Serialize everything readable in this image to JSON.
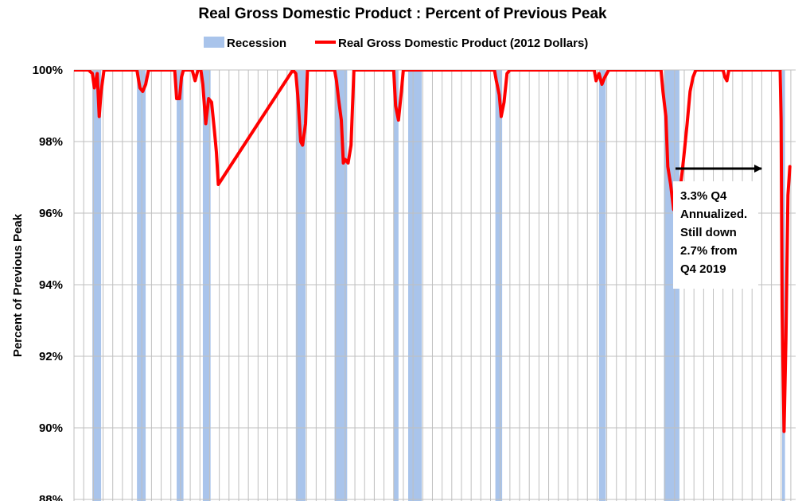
{
  "chart_data": {
    "type": "line",
    "title": "Real Gross Domestic Product : Percent of Previous Peak",
    "ylabel": "Percent of Previous Peak",
    "xlabel": "",
    "ylim": [
      88,
      100
    ],
    "xlim": [
      1947.0,
      2021.5
    ],
    "y_ticks": [
      {
        "value": 100,
        "label": "100%"
      },
      {
        "value": 98,
        "label": "98%"
      },
      {
        "value": 96,
        "label": "96%"
      },
      {
        "value": 94,
        "label": "94%"
      },
      {
        "value": 92,
        "label": "92%"
      },
      {
        "value": 90,
        "label": "90%"
      },
      {
        "value": 88,
        "label": "88%"
      }
    ],
    "legend": {
      "placement": "top"
    },
    "colors": {
      "recession": "#a9c4eb",
      "gdp": "#ff0000",
      "grid": "#bfbfbf"
    },
    "recessions": {
      "name": "Recession",
      "periods": [
        [
          1948.9,
          1949.8
        ],
        [
          1953.5,
          1954.4
        ],
        [
          1957.6,
          1958.3
        ],
        [
          1960.3,
          1961.1
        ],
        [
          1969.9,
          1970.9
        ],
        [
          1973.9,
          1975.2
        ],
        [
          1980.0,
          1980.5
        ],
        [
          1981.5,
          1982.9
        ],
        [
          1990.5,
          1991.2
        ],
        [
          2001.2,
          2001.9
        ],
        [
          2007.9,
          2009.5
        ],
        [
          2020.1,
          2020.4
        ]
      ]
    },
    "series": [
      {
        "name": "Real Gross Domestic Product (2012 Dollars)",
        "x": [
          1947.0,
          1948.5,
          1948.9,
          1949.1,
          1949.4,
          1949.6,
          1949.8,
          1950.1,
          1950.3,
          1953.5,
          1953.8,
          1954.1,
          1954.4,
          1954.7,
          1954.9,
          1955.1,
          1957.4,
          1957.6,
          1957.9,
          1958.1,
          1958.3,
          1958.5,
          1958.8,
          1959.2,
          1959.5,
          1959.8,
          1960.1,
          1960.3,
          1960.6,
          1960.9,
          1961.2,
          1961.5,
          1961.7,
          1961.9,
          1969.6,
          1969.9,
          1970.1,
          1970.4,
          1970.6,
          1970.9,
          1971.1,
          1973.9,
          1974.1,
          1974.3,
          1974.6,
          1974.8,
          1975.0,
          1975.3,
          1975.6,
          1975.9,
          1979.9,
          1980.0,
          1980.2,
          1980.5,
          1980.8,
          1981.0,
          1981.3,
          1981.6,
          1981.8,
          1982.0,
          1982.3,
          1982.5,
          1982.8,
          1983.1,
          1983.3,
          1983.5,
          1990.4,
          1990.6,
          1990.9,
          1991.1,
          1991.4,
          1991.7,
          1992.0,
          2000.7,
          2000.9,
          2001.2,
          2001.5,
          2001.8,
          2002.2,
          2007.6,
          2007.8,
          2008.1,
          2008.3,
          2008.6,
          2008.9,
          2009.2,
          2009.5,
          2009.8,
          2010.0,
          2010.3,
          2010.6,
          2010.9,
          2011.2,
          2011.5,
          2011.8,
          2012.0,
          2012.3,
          2014.0,
          2014.2,
          2014.4,
          2014.6,
          2019.9,
          2020.0,
          2020.1,
          2020.3,
          2020.5,
          2020.7,
          2020.9
        ],
        "values": [
          100.0,
          100.0,
          99.9,
          99.5,
          99.9,
          98.7,
          99.4,
          100.0,
          100.0,
          100.0,
          99.5,
          99.4,
          99.6,
          100.0,
          100.0,
          100.0,
          100.0,
          99.2,
          99.2,
          99.8,
          100.0,
          100.0,
          100.0,
          100.0,
          99.7,
          100.0,
          100.0,
          99.6,
          98.5,
          99.2,
          99.1,
          98.3,
          97.7,
          96.8,
          100.0,
          99.9,
          99.3,
          98.0,
          97.9,
          98.5,
          100.0,
          100.0,
          99.7,
          99.2,
          98.6,
          97.4,
          97.5,
          97.4,
          97.9,
          100.0,
          100.0,
          100.0,
          99.0,
          98.6,
          99.4,
          100.0,
          100.0,
          100.0,
          100.0,
          100.0,
          100.0,
          100.0,
          100.0,
          100.0,
          100.0,
          100.0,
          100.0,
          99.7,
          99.3,
          98.7,
          99.1,
          99.9,
          100.0,
          100.0,
          99.7,
          99.9,
          99.6,
          99.8,
          100.0,
          100.0,
          99.4,
          98.7,
          97.3,
          96.8,
          96.1,
          96.0,
          96.5,
          97.2,
          97.7,
          98.5,
          99.4,
          99.8,
          100.0,
          100.0,
          100.0,
          100.0,
          100.0,
          100.0,
          99.8,
          99.7,
          100.0,
          100.0,
          98.6,
          93.3,
          89.9,
          92.5,
          96.5,
          97.3
        ]
      }
    ],
    "annotation": {
      "lines": [
        "3.3% Q4",
        "Annualized.",
        "Still down",
        "2.7% from",
        "Q4 2019"
      ],
      "arrow": "right"
    }
  }
}
